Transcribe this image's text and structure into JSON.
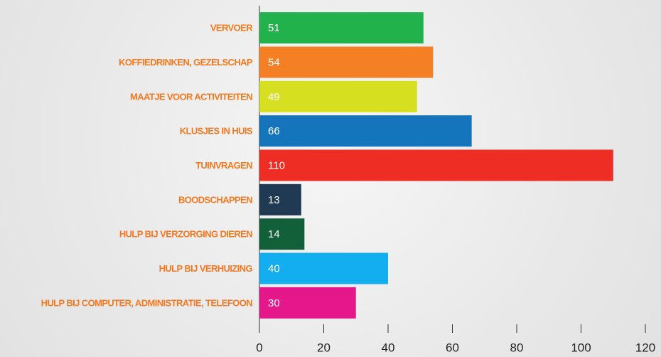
{
  "chart_data": {
    "type": "bar",
    "categories": [
      "VERVOER",
      "KOFFIEDRINKEN, GEZELSCHAP",
      "MAATJE VOOR ACTIVITEITEN",
      "KLUSJES IN HUIS",
      "TUINVRAGEN",
      "BOODSCHAPPEN",
      "HULP BIJ VERZORGING DIEREN",
      "HULP BIJ VERHUIZING",
      "HULP BIJ COMPUTER, ADMINISTRATIE, TELEFOON"
    ],
    "values": [
      51,
      54,
      49,
      66,
      110,
      13,
      14,
      40,
      30
    ],
    "colors": [
      "#22b24c",
      "#f47f24",
      "#d6e021",
      "#1474bc",
      "#ee2d24",
      "#1f3a52",
      "#12603a",
      "#13aeef",
      "#e6168b"
    ],
    "orientation": "horizontal",
    "xlim": [
      0,
      120
    ],
    "xticks": [
      0,
      20,
      40,
      60,
      80,
      100,
      120
    ]
  }
}
